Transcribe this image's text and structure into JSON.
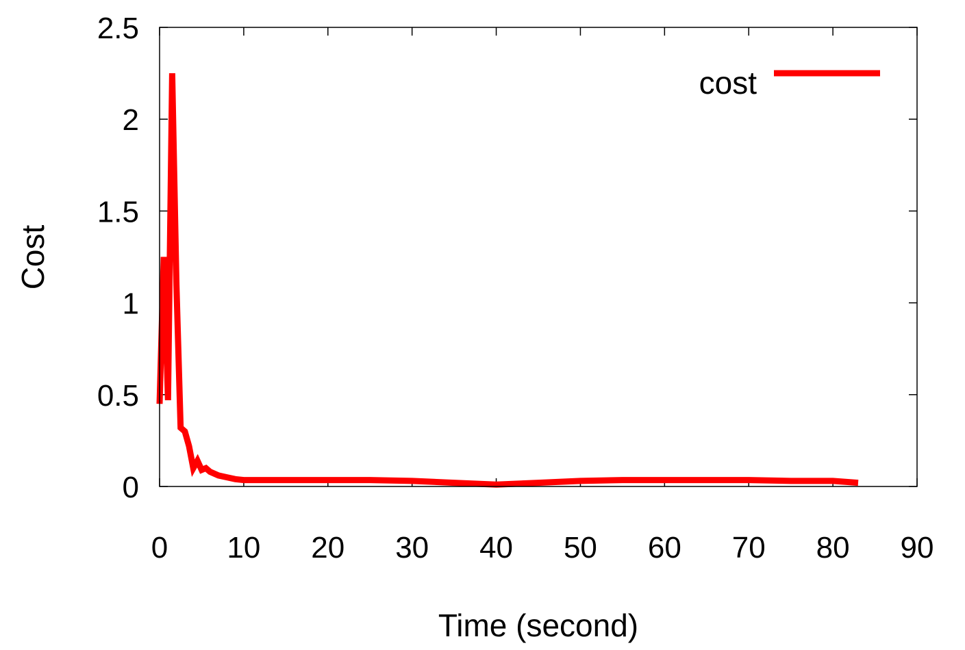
{
  "chart_data": {
    "type": "line",
    "xlabel": "Time (second)",
    "ylabel": "Cost",
    "xlim": [
      0,
      90
    ],
    "ylim": [
      0,
      2.5
    ],
    "x_ticks": [
      "0",
      "10",
      "20",
      "30",
      "40",
      "50",
      "60",
      "70",
      "80",
      "90"
    ],
    "y_ticks": [
      "0",
      "0.5",
      "1",
      "1.5",
      "2",
      "2.5"
    ],
    "grid": false,
    "legend_position": "top-right",
    "series": [
      {
        "name": "cost",
        "color": "#ff0000",
        "x": [
          0,
          0.5,
          1.0,
          1.5,
          2.0,
          2.5,
          3.0,
          3.5,
          4.0,
          4.5,
          5.0,
          5.5,
          6.0,
          7.0,
          8.0,
          9.0,
          10,
          15,
          20,
          25,
          30,
          35,
          40,
          45,
          50,
          55,
          60,
          65,
          70,
          75,
          80,
          83
        ],
        "y": [
          0.45,
          1.25,
          0.47,
          2.25,
          1.1,
          0.32,
          0.3,
          0.22,
          0.1,
          0.14,
          0.09,
          0.1,
          0.08,
          0.06,
          0.05,
          0.04,
          0.035,
          0.035,
          0.035,
          0.035,
          0.03,
          0.02,
          0.01,
          0.02,
          0.03,
          0.035,
          0.035,
          0.035,
          0.035,
          0.03,
          0.03,
          0.02
        ]
      }
    ]
  }
}
